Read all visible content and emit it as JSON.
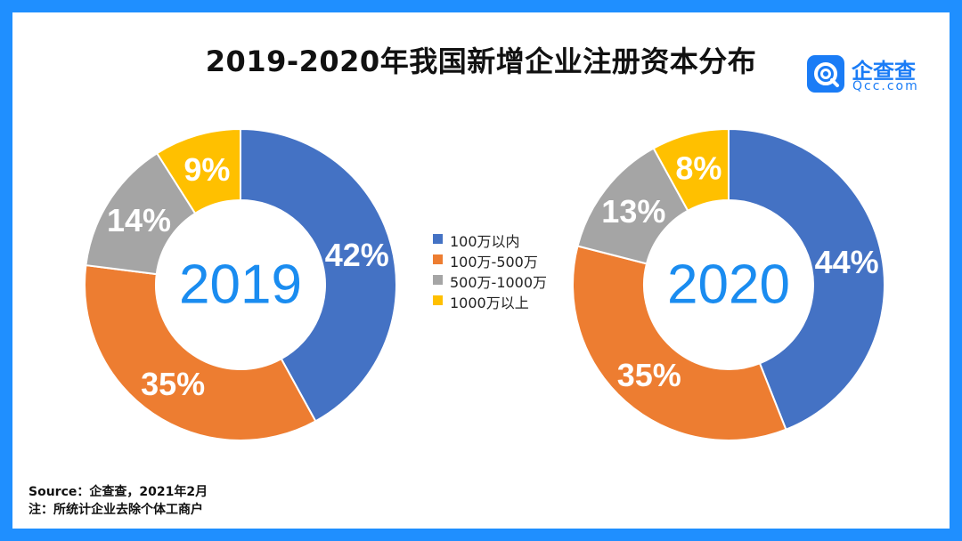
{
  "title": "2019-2020年我国新增企业注册资本分布",
  "brand": {
    "name": "企查查",
    "domain": "Qcc.com",
    "color": "#1a7cf6"
  },
  "legend": [
    {
      "label": "100万以内",
      "color": "#4472c4"
    },
    {
      "label": "100万-500万",
      "color": "#ed7d31"
    },
    {
      "label": "500万-1000万",
      "color": "#a5a5a5"
    },
    {
      "label": "1000万以上",
      "color": "#ffc000"
    }
  ],
  "chart_data": [
    {
      "type": "pie",
      "center_label": "2019",
      "categories": [
        "100万以内",
        "100万-500万",
        "500万-1000万",
        "1000万以上"
      ],
      "values": [
        42,
        35,
        14,
        9
      ],
      "labels": [
        "42%",
        "35%",
        "14%",
        "9%"
      ]
    },
    {
      "type": "pie",
      "center_label": "2020",
      "categories": [
        "100万以内",
        "100万-500万",
        "500万-1000万",
        "1000万以上"
      ],
      "values": [
        44,
        35,
        13,
        8
      ],
      "labels": [
        "44%",
        "35%",
        "13%",
        "8%"
      ]
    }
  ],
  "footer": {
    "source": "Source：企查查，2021年2月",
    "note": "注：所统计企业去除个体工商户"
  }
}
